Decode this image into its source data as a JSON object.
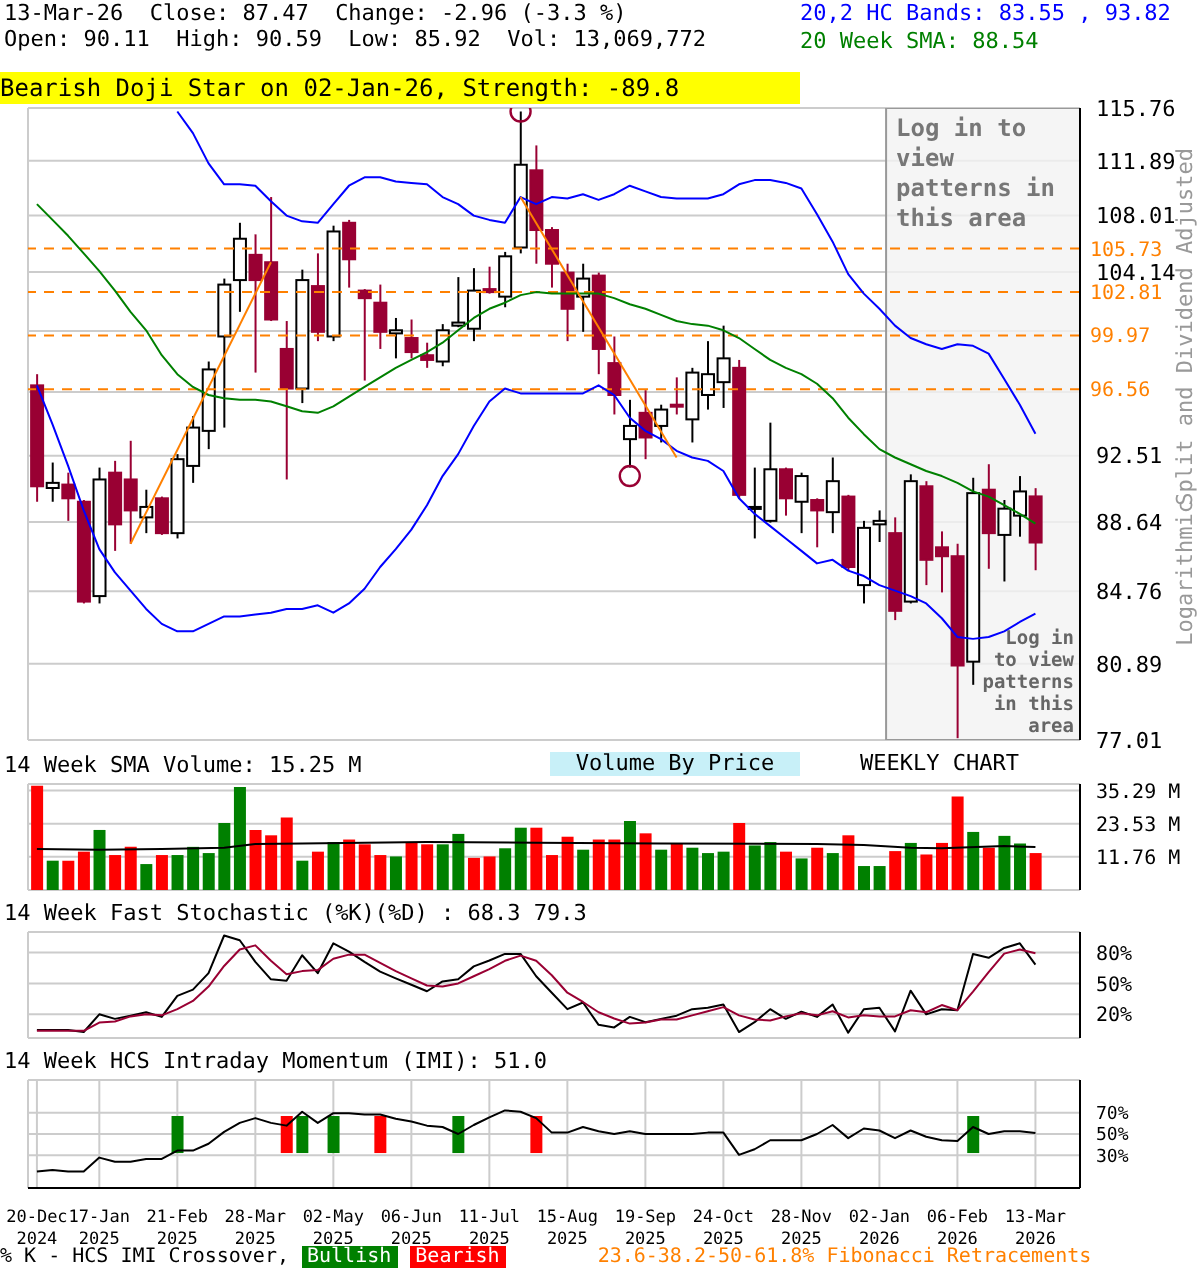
{
  "chart_data": [
    {
      "type": "candlestick",
      "title": "13-Mar-26  Close: 87.47  Change: -2.96 (-3.3 %)",
      "subtitle": "Open: 90.11  High: 90.59  Low: 85.92  Vol: 13,069,772",
      "ylabel": "Split and Dividend Adjusted",
      "annotations": [
        "Bearish Doji Star on 02-Jan-26, Strength: -89.8",
        "Logarithmic",
        "Log in to view patterns in this area"
      ],
      "x": [
        "2024-12-20",
        "2024-12-27",
        "2025-01-03",
        "2025-01-10",
        "2025-01-17",
        "2025-01-24",
        "2025-01-31",
        "2025-02-07",
        "2025-02-14",
        "2025-02-21",
        "2025-02-28",
        "2025-03-07",
        "2025-03-14",
        "2025-03-21",
        "2025-03-28",
        "2025-04-04",
        "2025-04-11",
        "2025-04-18",
        "2025-04-25",
        "2025-05-02",
        "2025-05-09",
        "2025-05-16",
        "2025-05-23",
        "2025-05-30",
        "2025-06-06",
        "2025-06-13",
        "2025-06-20",
        "2025-06-27",
        "2025-07-04",
        "2025-07-11",
        "2025-07-18",
        "2025-07-25",
        "2025-08-01",
        "2025-08-08",
        "2025-08-15",
        "2025-08-22",
        "2025-08-29",
        "2025-09-05",
        "2025-09-12",
        "2025-09-19",
        "2025-09-26",
        "2025-10-03",
        "2025-10-10",
        "2025-10-17",
        "2025-10-24",
        "2025-10-31",
        "2025-11-07",
        "2025-11-14",
        "2025-11-21",
        "2025-11-28",
        "2025-12-05",
        "2025-12-12",
        "2025-12-19",
        "2025-12-26",
        "2026-01-02",
        "2026-01-09",
        "2026-01-16",
        "2026-01-23",
        "2026-01-30",
        "2026-02-06",
        "2026-02-13",
        "2026-02-20",
        "2026-02-27",
        "2026-03-06",
        "2026-03-13"
      ],
      "ohlc": [
        [
          96.8,
          97.5,
          89.8,
          90.7
        ],
        [
          90.6,
          92.1,
          89.8,
          90.9
        ],
        [
          90.8,
          91.5,
          88.7,
          90.0
        ],
        [
          89.8,
          89.9,
          84.1,
          84.2
        ],
        [
          84.5,
          91.8,
          84.1,
          91.1
        ],
        [
          91.5,
          92.2,
          87.0,
          88.5
        ],
        [
          91.1,
          93.4,
          87.4,
          89.3
        ],
        [
          88.9,
          90.5,
          88.0,
          89.5
        ],
        [
          90.0,
          90.1,
          87.9,
          88.0
        ],
        [
          88.0,
          92.6,
          87.7,
          92.3
        ],
        [
          91.9,
          94.9,
          90.9,
          94.2
        ],
        [
          94.0,
          98.3,
          92.9,
          97.8
        ],
        [
          99.9,
          103.7,
          94.2,
          103.3
        ],
        [
          103.6,
          107.5,
          101.5,
          106.4
        ],
        [
          105.3,
          106.7,
          97.6,
          103.6
        ],
        [
          104.8,
          109.3,
          100.9,
          101.0
        ],
        [
          99.1,
          100.9,
          91.1,
          96.6
        ],
        [
          96.6,
          104.3,
          95.7,
          103.6
        ],
        [
          103.2,
          105.4,
          99.6,
          100.2
        ],
        [
          99.9,
          107.3,
          99.6,
          106.9
        ],
        [
          107.5,
          107.7,
          103.1,
          105.0
        ],
        [
          102.9,
          103.0,
          97.1,
          102.4
        ],
        [
          102.1,
          103.3,
          99.1,
          100.2
        ],
        [
          100.1,
          101.1,
          98.5,
          100.3
        ],
        [
          99.8,
          101.0,
          98.5,
          98.9
        ],
        [
          98.7,
          99.5,
          97.9,
          98.4
        ],
        [
          98.3,
          100.7,
          98.0,
          100.3
        ],
        [
          100.6,
          103.8,
          100.5,
          100.8
        ],
        [
          100.4,
          104.4,
          99.6,
          102.9
        ],
        [
          103.0,
          104.5,
          102.7,
          102.8
        ],
        [
          102.5,
          105.5,
          101.8,
          105.2
        ],
        [
          105.8,
          115.5,
          105.4,
          111.6
        ],
        [
          111.2,
          113.0,
          104.7,
          107.0
        ],
        [
          107.0,
          107.2,
          103.1,
          104.7
        ],
        [
          104.1,
          104.7,
          99.6,
          101.7
        ],
        [
          102.5,
          104.7,
          100.2,
          103.7
        ],
        [
          103.9,
          104.1,
          97.5,
          99.1
        ],
        [
          98.2,
          99.9,
          95.0,
          96.2
        ],
        [
          93.5,
          95.9,
          91.8,
          94.3
        ],
        [
          95.1,
          96.5,
          92.3,
          93.6
        ],
        [
          94.3,
          95.6,
          93.3,
          95.3
        ],
        [
          95.6,
          97.3,
          95.0,
          95.5
        ],
        [
          94.7,
          97.9,
          93.3,
          97.6
        ],
        [
          96.2,
          99.6,
          95.3,
          97.5
        ],
        [
          97.0,
          100.6,
          95.4,
          98.5
        ],
        [
          97.9,
          98.4,
          90.0,
          90.2
        ],
        [
          89.4,
          91.8,
          87.7,
          89.5
        ],
        [
          88.7,
          94.5,
          88.6,
          91.7
        ],
        [
          91.7,
          91.8,
          89.0,
          90.0
        ],
        [
          89.8,
          91.5,
          88.0,
          91.3
        ],
        [
          89.9,
          90.0,
          87.2,
          89.3
        ],
        [
          89.2,
          92.4,
          88.0,
          91.0
        ],
        [
          90.1,
          90.2,
          85.9,
          86.1
        ],
        [
          85.1,
          88.7,
          84.1,
          88.3
        ],
        [
          88.5,
          89.3,
          87.5,
          88.7
        ],
        [
          88.0,
          88.9,
          83.2,
          83.7
        ],
        [
          84.2,
          91.4,
          84.1,
          91.0
        ],
        [
          90.7,
          91.0,
          85.1,
          86.5
        ],
        [
          87.2,
          88.1,
          84.7,
          86.7
        ],
        [
          86.7,
          87.4,
          77.1,
          80.8
        ],
        [
          81.0,
          91.2,
          79.8,
          90.3
        ],
        [
          90.5,
          92.0,
          86.0,
          88.0
        ],
        [
          87.9,
          89.9,
          85.3,
          89.4
        ],
        [
          89.0,
          91.3,
          87.8,
          90.4
        ],
        [
          90.11,
          90.59,
          85.92,
          87.47
        ]
      ],
      "colors": [
        "#990033",
        "#ffffff",
        "#990033",
        "#990033",
        "#ffffff",
        "#990033",
        "#990033",
        "#ffffff",
        "#990033",
        "#ffffff",
        "#ffffff",
        "#ffffff",
        "#ffffff",
        "#ffffff",
        "#990033",
        "#990033",
        "#990033",
        "#ffffff",
        "#990033",
        "#ffffff",
        "#990033",
        "#990033",
        "#990033",
        "#ffffff",
        "#990033",
        "#990033",
        "#ffffff",
        "#ffffff",
        "#ffffff",
        "#990033",
        "#ffffff",
        "#ffffff",
        "#990033",
        "#990033",
        "#990033",
        "#ffffff",
        "#990033",
        "#990033",
        "#ffffff",
        "#990033",
        "#ffffff",
        "#990033",
        "#ffffff",
        "#ffffff",
        "#ffffff",
        "#990033",
        "#ffffff",
        "#ffffff",
        "#990033",
        "#ffffff",
        "#990033",
        "#ffffff",
        "#990033",
        "#ffffff",
        "#ffffff",
        "#990033",
        "#ffffff",
        "#990033",
        "#990033",
        "#990033",
        "#ffffff",
        "#990033",
        "#ffffff",
        "#ffffff",
        "#990033"
      ],
      "series": [
        {
          "type": "line",
          "name": "20,2 HC Bands: 83.55 , 93.82",
          "color": "#0000ff",
          "values": [
            null,
            null,
            null,
            null,
            null,
            null,
            null,
            null,
            null,
            115.5,
            113.9,
            111.7,
            110.2,
            110.2,
            110.1,
            109.0,
            108.0,
            107.6,
            107.5,
            108.8,
            110.1,
            110.7,
            110.7,
            110.4,
            110.3,
            110.2,
            109.3,
            108.8,
            108.0,
            107.7,
            107.5,
            109.3,
            108.8,
            109.3,
            109.2,
            109.5,
            109.1,
            109.5,
            110.1,
            109.7,
            109.3,
            109.2,
            109.2,
            109.2,
            109.5,
            110.2,
            110.5,
            110.5,
            110.3,
            109.9,
            108.1,
            106.2,
            104.0,
            102.7,
            101.7,
            100.6,
            99.8,
            99.4,
            99.1,
            99.4,
            99.3,
            98.8,
            97.2,
            95.6,
            93.82
          ]
        },
        {
          "type": "line",
          "color": "#0000ff",
          "values": [
            96.8,
            94.4,
            91.9,
            89.3,
            87.1,
            85.8,
            84.8,
            83.8,
            83.0,
            82.6,
            82.6,
            83.0,
            83.4,
            83.4,
            83.5,
            83.6,
            83.8,
            83.8,
            84.0,
            83.6,
            84.1,
            84.9,
            86.1,
            87.1,
            88.2,
            89.6,
            91.3,
            92.6,
            94.3,
            95.8,
            96.6,
            96.3,
            96.3,
            96.3,
            96.3,
            96.3,
            96.8,
            96.2,
            94.8,
            94.0,
            93.5,
            92.8,
            92.4,
            92.2,
            91.6,
            90.0,
            89.1,
            88.4,
            87.7,
            87.0,
            86.3,
            86.5,
            85.9,
            85.6,
            85.1,
            84.8,
            84.5,
            84.1,
            83.3,
            82.3,
            82.2,
            82.3,
            82.6,
            83.1,
            83.55
          ]
        },
        {
          "type": "line",
          "name": "20 Week SMA: 88.54",
          "color": "#008000",
          "values": [
            108.8,
            107.7,
            106.6,
            105.4,
            104.2,
            102.9,
            101.5,
            100.3,
            98.7,
            97.5,
            96.7,
            96.2,
            96.0,
            95.9,
            95.9,
            95.8,
            95.5,
            95.2,
            95.1,
            95.5,
            96.1,
            96.7,
            97.3,
            97.9,
            98.4,
            98.9,
            99.5,
            100.3,
            101.1,
            101.7,
            102.1,
            102.6,
            102.8,
            102.7,
            102.7,
            102.7,
            102.7,
            102.4,
            102.0,
            101.7,
            101.3,
            100.9,
            100.7,
            100.6,
            100.3,
            99.8,
            99.1,
            98.4,
            97.9,
            97.5,
            96.9,
            96.0,
            94.8,
            93.8,
            92.9,
            92.4,
            92.0,
            91.6,
            91.3,
            90.9,
            90.4,
            90.1,
            89.6,
            89.1,
            88.54
          ]
        },
        {
          "type": "line",
          "color": "#ff8000",
          "x": [
            "2025-01-31",
            "2025-04-04"
          ],
          "values": [
            87.4,
            104.8
          ]
        },
        {
          "type": "line",
          "color": "#ff8000",
          "x": [
            "2025-07-25",
            "2025-10-03"
          ],
          "values": [
            109.3,
            92.4
          ]
        },
        {
          "type": "scatter",
          "color": "#990033",
          "marker": "circle",
          "x": [
            "2025-07-25",
            "2025-09-12"
          ],
          "values": [
            115.5,
            91.3
          ]
        }
      ],
      "ylim": [
        77.01,
        115.76
      ],
      "yticks": [
        77.01,
        80.89,
        84.76,
        88.64,
        92.51,
        {
          "value": 96.39,
          "label": null
        },
        {
          "value": 100.26,
          "label": null
        },
        104.14,
        108.01,
        111.89,
        115.76
      ],
      "xlim": [
        "2024-12-16",
        "2026-04-02"
      ],
      "xticks": [
        {
          "value": "2024-12-20",
          "label": null
        },
        {
          "value": "2025-01-17",
          "label": null
        },
        {
          "value": "2025-02-21",
          "label": null
        },
        {
          "value": "2025-03-28",
          "label": null
        },
        {
          "value": "2025-05-02",
          "label": null
        },
        {
          "value": "2025-06-06",
          "label": null
        },
        {
          "value": "2025-07-11",
          "label": null
        },
        {
          "value": "2025-08-15",
          "label": null
        },
        {
          "value": "2025-09-19",
          "label": null
        },
        {
          "value": "2025-10-24",
          "label": null
        },
        {
          "value": "2025-11-28",
          "label": null
        },
        {
          "value": "2026-01-02",
          "label": null
        },
        {
          "value": "2026-02-06",
          "label": null
        },
        {
          "value": "2026-03-13",
          "label": null
        }
      ],
      "log": true,
      "grid": true,
      "legend": "top right",
      "tick_labels": "y",
      "ref_lines": [
        {
          "axis": "y",
          "value": 105.73,
          "label": "105.73",
          "color": "#ff8000",
          "line_style": "dashed"
        },
        {
          "axis": "y",
          "value": 102.81,
          "label": "102.81",
          "color": "#ff8000",
          "line_style": "dashed"
        },
        {
          "axis": "y",
          "value": 99.97,
          "label": "99.97",
          "color": "#ff8000",
          "line_style": "dashed"
        },
        {
          "axis": "y",
          "value": 96.56,
          "label": "96.56",
          "color": "#ff8000",
          "line_style": "dashed"
        }
      ],
      "bands": [
        {
          "axis": "x",
          "from": "2026-01-05",
          "to": "2026-04-02",
          "label": "Log in to view patterns in this area",
          "color": "#f2f2f2"
        }
      ]
    },
    {
      "type": "bar",
      "title": "14 Week SMA Volume: 15.25 M",
      "annotations": [
        "Volume By Price",
        "WEEKLY CHART"
      ],
      "x": [
        "2024-12-20",
        "2024-12-27",
        "2025-01-03",
        "2025-01-10",
        "2025-01-17",
        "2025-01-24",
        "2025-01-31",
        "2025-02-07",
        "2025-02-14",
        "2025-02-21",
        "2025-02-28",
        "2025-03-07",
        "2025-03-14",
        "2025-03-21",
        "2025-03-28",
        "2025-04-04",
        "2025-04-11",
        "2025-04-18",
        "2025-04-25",
        "2025-05-02",
        "2025-05-09",
        "2025-05-16",
        "2025-05-23",
        "2025-05-30",
        "2025-06-06",
        "2025-06-13",
        "2025-06-20",
        "2025-06-27",
        "2025-07-04",
        "2025-07-11",
        "2025-07-18",
        "2025-07-25",
        "2025-08-01",
        "2025-08-08",
        "2025-08-15",
        "2025-08-22",
        "2025-08-29",
        "2025-09-05",
        "2025-09-12",
        "2025-09-19",
        "2025-09-26",
        "2025-10-03",
        "2025-10-10",
        "2025-10-17",
        "2025-10-24",
        "2025-10-31",
        "2025-11-07",
        "2025-11-14",
        "2025-11-21",
        "2025-11-28",
        "2025-12-05",
        "2025-12-12",
        "2025-12-19",
        "2025-12-26",
        "2026-01-02",
        "2026-01-09",
        "2026-01-16",
        "2026-01-23",
        "2026-01-30",
        "2026-02-06",
        "2026-02-13",
        "2026-02-20",
        "2026-02-27",
        "2026-03-06",
        "2026-03-13"
      ],
      "series": [
        {
          "type": "bar",
          "values": [
            37.0,
            10.4,
            10.4,
            13.6,
            21.3,
            12.4,
            15.3,
            9.2,
            12.4,
            12.4,
            15.3,
            13.1,
            23.8,
            36.5,
            21.3,
            19.4,
            25.7,
            10.4,
            13.6,
            17.0,
            17.9,
            16.2,
            12.4,
            11.9,
            17.0,
            16.2,
            16.2,
            19.9,
            11.4,
            11.9,
            14.8,
            22.1,
            22.1,
            12.4,
            18.9,
            14.3,
            17.9,
            17.9,
            24.5,
            20.1,
            14.3,
            16.5,
            15.0,
            13.1,
            13.6,
            23.8,
            15.8,
            17.0,
            13.6,
            11.2,
            15.0,
            13.1,
            19.4,
            8.5,
            8.5,
            13.8,
            16.7,
            12.6,
            16.7,
            33.2,
            20.6,
            15.0,
            19.2,
            16.5,
            13.1
          ],
          "colors": [
            "#ff0000",
            "#008000",
            "#ff0000",
            "#ff0000",
            "#008000",
            "#ff0000",
            "#ff0000",
            "#008000",
            "#ff0000",
            "#008000",
            "#008000",
            "#008000",
            "#008000",
            "#008000",
            "#ff0000",
            "#ff0000",
            "#ff0000",
            "#008000",
            "#ff0000",
            "#008000",
            "#ff0000",
            "#ff0000",
            "#ff0000",
            "#008000",
            "#ff0000",
            "#ff0000",
            "#008000",
            "#008000",
            "#ff0000",
            "#ff0000",
            "#008000",
            "#008000",
            "#ff0000",
            "#ff0000",
            "#ff0000",
            "#008000",
            "#ff0000",
            "#ff0000",
            "#008000",
            "#ff0000",
            "#008000",
            "#ff0000",
            "#008000",
            "#008000",
            "#008000",
            "#ff0000",
            "#008000",
            "#008000",
            "#ff0000",
            "#008000",
            "#ff0000",
            "#008000",
            "#ff0000",
            "#008000",
            "#008000",
            "#ff0000",
            "#008000",
            "#ff0000",
            "#ff0000",
            "#ff0000",
            "#008000",
            "#ff0000",
            "#008000",
            "#008000",
            "#ff0000"
          ]
        },
        {
          "type": "line",
          "color": "#000000",
          "x": [
            "2024-12-20",
            "2025-01-17",
            "2025-02-14",
            "2025-03-14",
            "2025-03-28",
            "2025-04-18",
            "2025-06-13",
            "2025-08-01",
            "2025-09-26",
            "2025-12-05",
            "2025-12-26",
            "2026-01-16",
            "2026-01-30",
            "2026-02-27",
            "2026-03-13"
          ],
          "values": [
            14.5,
            14.3,
            14.5,
            15.0,
            16.3,
            16.5,
            17.0,
            16.8,
            16.5,
            16.3,
            16.0,
            15.0,
            14.8,
            15.6,
            15.25
          ]
        }
      ],
      "ylim": [
        0,
        37.6
      ],
      "yticks": [
        {
          "value": 11.76,
          "label": "11.76 M"
        },
        {
          "value": 23.53,
          "label": "23.53 M"
        },
        {
          "value": 35.29,
          "label": "35.29 M"
        }
      ],
      "xlim": [
        "2024-12-16",
        "2026-04-02"
      ],
      "xticks": [
        {
          "value": "2024-12-20",
          "label": null
        },
        {
          "value": "2025-01-17",
          "label": null
        },
        {
          "value": "2025-02-21",
          "label": null
        },
        {
          "value": "2025-03-28",
          "label": null
        },
        {
          "value": "2025-05-02",
          "label": null
        },
        {
          "value": "2025-06-06",
          "label": null
        },
        {
          "value": "2025-07-11",
          "label": null
        },
        {
          "value": "2025-08-15",
          "label": null
        },
        {
          "value": "2025-09-19",
          "label": null
        },
        {
          "value": "2025-10-24",
          "label": null
        },
        {
          "value": "2025-11-28",
          "label": null
        },
        {
          "value": "2026-01-02",
          "label": null
        },
        {
          "value": "2026-02-06",
          "label": null
        },
        {
          "value": "2026-03-13",
          "label": null
        }
      ],
      "grid": true,
      "tick_labels": "y"
    },
    {
      "type": "line",
      "title": "14 Week Fast Stochastic (%K)(%D) : 68.3 79.3",
      "x": [
        "2024-12-20",
        "2024-12-27",
        "2025-01-03",
        "2025-01-10",
        "2025-01-17",
        "2025-01-24",
        "2025-01-31",
        "2025-02-07",
        "2025-02-14",
        "2025-02-21",
        "2025-02-28",
        "2025-03-07",
        "2025-03-14",
        "2025-03-21",
        "2025-03-28",
        "2025-04-04",
        "2025-04-11",
        "2025-04-18",
        "2025-04-25",
        "2025-05-02",
        "2025-05-09",
        "2025-05-16",
        "2025-05-23",
        "2025-05-30",
        "2025-06-06",
        "2025-06-13",
        "2025-06-20",
        "2025-06-27",
        "2025-07-04",
        "2025-07-11",
        "2025-07-18",
        "2025-07-25",
        "2025-08-01",
        "2025-08-08",
        "2025-08-15",
        "2025-08-22",
        "2025-08-29",
        "2025-09-05",
        "2025-09-12",
        "2025-09-19",
        "2025-09-26",
        "2025-10-03",
        "2025-10-10",
        "2025-10-17",
        "2025-10-24",
        "2025-10-31",
        "2025-11-07",
        "2025-11-14",
        "2025-11-21",
        "2025-11-28",
        "2025-12-05",
        "2025-12-12",
        "2025-12-19",
        "2025-12-26",
        "2026-01-02",
        "2026-01-09",
        "2026-01-16",
        "2026-01-23",
        "2026-01-30",
        "2026-02-06",
        "2026-02-13",
        "2026-02-20",
        "2026-02-27",
        "2026-03-06",
        "2026-03-13"
      ],
      "series": [
        {
          "color": "#000000",
          "values": [
            4.7,
            4.7,
            4.7,
            2.8,
            20,
            15.6,
            18.7,
            22,
            17.5,
            38,
            44,
            60,
            96.6,
            92,
            71,
            54,
            52.6,
            77.4,
            60,
            89,
            81,
            71,
            61.5,
            55,
            48.7,
            42.4,
            52,
            54,
            66.6,
            72.3,
            78.7,
            78.7,
            57,
            41,
            25,
            31.5,
            9.8,
            7.3,
            17.5,
            12.4,
            15.6,
            18.7,
            25,
            26.4,
            29.6,
            2.8,
            12.4,
            25,
            15.6,
            22.6,
            17.5,
            29.6,
            2.2,
            25,
            26.4,
            3.4,
            43,
            20,
            25,
            23.9,
            78.7,
            74.9,
            84.5,
            89,
            68.3
          ]
        },
        {
          "color": "#990033",
          "values": [
            4,
            4,
            4,
            4,
            12,
            13,
            18,
            20,
            19,
            25,
            33,
            47,
            67,
            83,
            87,
            72,
            59,
            62,
            63,
            74,
            78,
            78,
            70,
            62,
            55,
            48,
            47,
            50,
            57,
            64,
            72,
            77,
            72,
            58,
            41,
            32,
            22,
            16,
            11,
            12,
            15,
            15,
            19,
            23,
            27,
            19,
            15,
            14,
            18,
            21,
            19,
            23,
            17,
            19,
            18,
            18,
            24,
            22,
            29,
            24,
            42,
            61,
            79,
            83,
            79.3
          ]
        }
      ],
      "ylim": [
        -3,
        100
      ],
      "yticks": [
        {
          "value": 20,
          "label": "20%"
        },
        {
          "value": 50,
          "label": "50%"
        },
        {
          "value": 80,
          "label": "80%"
        }
      ],
      "xlim": [
        "2024-12-16",
        "2026-04-02"
      ],
      "xticks": [
        {
          "value": "2024-12-20",
          "label": null
        },
        {
          "value": "2025-01-17",
          "label": null
        },
        {
          "value": "2025-02-21",
          "label": null
        },
        {
          "value": "2025-03-28",
          "label": null
        },
        {
          "value": "2025-05-02",
          "label": null
        },
        {
          "value": "2025-06-06",
          "label": null
        },
        {
          "value": "2025-07-11",
          "label": null
        },
        {
          "value": "2025-08-15",
          "label": null
        },
        {
          "value": "2025-09-19",
          "label": null
        },
        {
          "value": "2025-10-24",
          "label": null
        },
        {
          "value": "2025-11-28",
          "label": null
        },
        {
          "value": "2026-01-02",
          "label": null
        },
        {
          "value": "2026-02-06",
          "label": null
        },
        {
          "value": "2026-03-13",
          "label": null
        }
      ],
      "grid": true,
      "tick_labels": "y"
    },
    {
      "type": "line",
      "title": "14 Week HCS Intraday Momentum (IMI): 51.0",
      "legend_title": "% K - HCS IMI Crossover,",
      "annotations": [
        "23.6-38.2-50-61.8% Fibonacci Retracements"
      ],
      "x": [
        "2024-12-20",
        "2024-12-27",
        "2025-01-03",
        "2025-01-10",
        "2025-01-17",
        "2025-01-24",
        "2025-01-31",
        "2025-02-07",
        "2025-02-14",
        "2025-02-21",
        "2025-02-28",
        "2025-03-07",
        "2025-03-14",
        "2025-03-21",
        "2025-03-28",
        "2025-04-04",
        "2025-04-11",
        "2025-04-18",
        "2025-04-25",
        "2025-05-02",
        "2025-05-09",
        "2025-05-16",
        "2025-05-23",
        "2025-05-30",
        "2025-06-06",
        "2025-06-13",
        "2025-06-20",
        "2025-06-27",
        "2025-07-04",
        "2025-07-11",
        "2025-07-18",
        "2025-07-25",
        "2025-08-01",
        "2025-08-08",
        "2025-08-15",
        "2025-08-22",
        "2025-08-29",
        "2025-09-05",
        "2025-09-12",
        "2025-09-19",
        "2025-09-26",
        "2025-10-03",
        "2025-10-10",
        "2025-10-17",
        "2025-10-24",
        "2025-10-31",
        "2025-11-07",
        "2025-11-14",
        "2025-11-21",
        "2025-11-28",
        "2025-12-05",
        "2025-12-12",
        "2025-12-19",
        "2025-12-26",
        "2026-01-02",
        "2026-01-09",
        "2026-01-16",
        "2026-01-23",
        "2026-01-30",
        "2026-02-06",
        "2026-02-13",
        "2026-02-20",
        "2026-02-27",
        "2026-03-06",
        "2026-03-13"
      ],
      "series": [
        {
          "type": "line",
          "color": "#000000",
          "values": [
            14.6,
            15.9,
            14.6,
            14.6,
            27.7,
            23.8,
            23.8,
            26.4,
            26.4,
            34.3,
            34.3,
            40.8,
            52,
            60.5,
            65,
            60.5,
            57.9,
            71,
            60.5,
            69.7,
            69.7,
            68.4,
            68.4,
            64.4,
            61.8,
            57.9,
            56.6,
            50,
            58.5,
            65.7,
            72.3,
            71,
            65,
            51.3,
            51.3,
            56.6,
            52.6,
            50,
            52.6,
            50,
            50,
            50,
            50,
            51.3,
            51.3,
            30.3,
            35.6,
            44.1,
            44.1,
            44.1,
            50,
            58.5,
            46.1,
            55.2,
            53.3,
            46.1,
            53.3,
            47.4,
            44.1,
            43.4,
            56.6,
            50,
            52.6,
            52.6,
            51
          ]
        },
        {
          "type": "bar",
          "name": "Bullish",
          "color": "#008000",
          "x": [
            "2025-02-21",
            "2025-04-18",
            "2025-05-02",
            "2025-06-27",
            "2026-02-13"
          ],
          "base": [
            32,
            32,
            32,
            32,
            32
          ],
          "values": [
            35,
            35,
            35,
            35,
            35
          ]
        },
        {
          "type": "bar",
          "name": "Bearish",
          "color": "#ff0000",
          "x": [
            "2025-04-11",
            "2025-05-23",
            "2025-08-01"
          ],
          "base": [
            32,
            32,
            32
          ],
          "values": [
            35,
            35,
            35
          ]
        }
      ],
      "ylim": [
        -1,
        101
      ],
      "yticks": [
        {
          "value": 30,
          "label": "30%"
        },
        {
          "value": 50,
          "label": "50%"
        },
        {
          "value": 70,
          "label": "70%"
        }
      ],
      "xlim": [
        "2024-12-16",
        "2026-04-02"
      ],
      "xticks": [
        {
          "value": "2024-12-20",
          "label": "20-Dec 2024"
        },
        {
          "value": "2025-01-17",
          "label": "17-Jan 2025"
        },
        {
          "value": "2025-02-21",
          "label": "21-Feb 2025"
        },
        {
          "value": "2025-03-28",
          "label": "28-Mar 2025"
        },
        {
          "value": "2025-05-02",
          "label": "02-May 2025"
        },
        {
          "value": "2025-06-06",
          "label": "06-Jun 2025"
        },
        {
          "value": "2025-07-11",
          "label": "11-Jul 2025"
        },
        {
          "value": "2025-08-15",
          "label": "15-Aug 2025"
        },
        {
          "value": "2025-09-19",
          "label": "19-Sep 2025"
        },
        {
          "value": "2025-10-24",
          "label": "24-Oct 2025"
        },
        {
          "value": "2025-11-28",
          "label": "28-Nov 2025"
        },
        {
          "value": "2026-01-02",
          "label": "02-Jan 2026"
        },
        {
          "value": "2026-02-06",
          "label": "06-Feb 2026"
        },
        {
          "value": "2026-03-13",
          "label": "13-Mar 2026"
        }
      ],
      "grid": true,
      "legend": "bottom"
    }
  ]
}
